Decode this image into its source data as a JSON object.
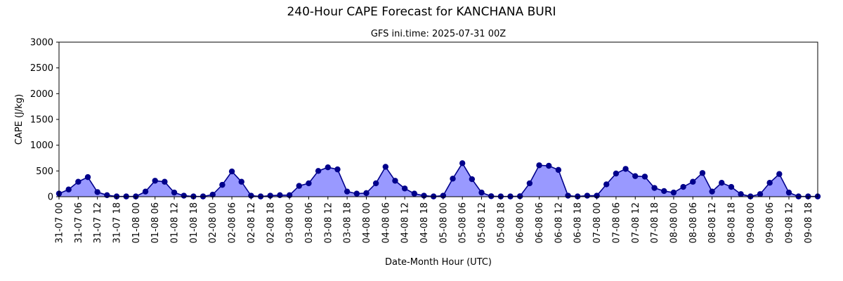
{
  "chart_data": {
    "type": "area",
    "title": "240-Hour CAPE Forecast for KANCHANA BURI",
    "subtitle": "GFS ini.time: 2025-07-31 00Z",
    "xlabel": "Date-Month Hour (UTC)",
    "ylabel": "CAPE (J/kg)",
    "ylim": [
      0,
      3000
    ],
    "yticks": [
      0,
      500,
      1000,
      1500,
      2000,
      2500,
      3000
    ],
    "x_step_hours": 3,
    "xtick_labels": [
      "31-07 00",
      "31-07 06",
      "31-07 12",
      "31-07 18",
      "01-08 00",
      "01-08 06",
      "01-08 12",
      "01-08 18",
      "02-08 00",
      "02-08 06",
      "02-08 12",
      "02-08 18",
      "03-08 00",
      "03-08 06",
      "03-08 12",
      "03-08 18",
      "04-08 00",
      "04-08 06",
      "04-08 12",
      "04-08 18",
      "05-08 00",
      "05-08 06",
      "05-08 12",
      "05-08 18",
      "06-08 00",
      "06-08 06",
      "06-08 12",
      "06-08 18",
      "07-08 00",
      "07-08 06",
      "07-08 12",
      "07-08 18",
      "08-08 00",
      "08-08 06",
      "08-08 12",
      "08-08 18",
      "09-08 00",
      "09-08 06",
      "09-08 12",
      "09-08 18"
    ],
    "series": [
      {
        "values": [
          60,
          140,
          290,
          380,
          90,
          30,
          5,
          5,
          5,
          100,
          310,
          290,
          80,
          20,
          5,
          5,
          40,
          230,
          490,
          290,
          20,
          5,
          20,
          30,
          30,
          210,
          260,
          500,
          570,
          530,
          100,
          60,
          70,
          260,
          580,
          310,
          160,
          60,
          20,
          5,
          20,
          350,
          650,
          340,
          80,
          10,
          5,
          5,
          10,
          260,
          610,
          600,
          520,
          20,
          5,
          20,
          20,
          240,
          450,
          540,
          400,
          390,
          170,
          110,
          80,
          190,
          290,
          460,
          100,
          270,
          190,
          50,
          5,
          50,
          270,
          440,
          80,
          5,
          5,
          5
        ],
        "line_color": "#00008b",
        "marker_color": "#00008b",
        "fill_color": "#9999ff"
      }
    ],
    "grid": false
  }
}
